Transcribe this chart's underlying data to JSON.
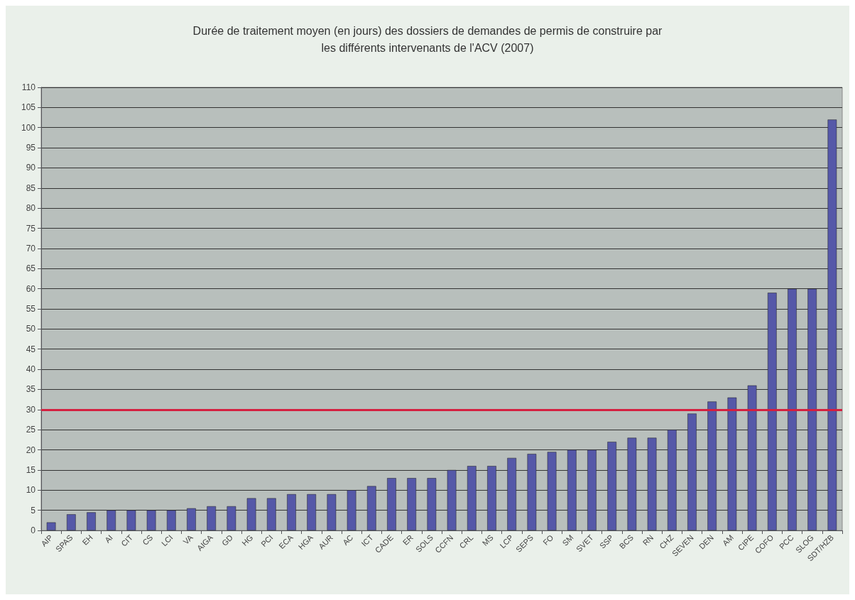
{
  "chart_data": {
    "type": "bar",
    "title": "Durée de traitement moyen (en jours) des dossiers de demandes de permis de construire par\nles différents intervenants de l'ACV (2007)",
    "categories": [
      "AIP",
      "SPAS",
      "EH",
      "AI",
      "CIT",
      "CS",
      "LCI",
      "VA",
      "AIGA",
      "GD",
      "HG",
      "PCI",
      "ECA",
      "HGA",
      "AUR",
      "AC",
      "ICT",
      "CADE",
      "ER",
      "SOLS",
      "CCFN",
      "CRL",
      "MS",
      "LCP",
      "SEPS",
      "FO",
      "SM",
      "SVET",
      "SSP",
      "BCS",
      "RN",
      "CHZ",
      "SEVEN",
      "DEN",
      "AM",
      "CIPE",
      "COFO",
      "PCC",
      "SLOG",
      "SDT/HZB"
    ],
    "values": [
      2,
      4,
      4.5,
      5,
      5,
      5,
      5,
      5.5,
      6,
      6,
      8,
      8,
      9,
      9,
      9,
      10,
      11,
      13,
      13,
      13,
      15,
      16,
      16,
      18,
      19,
      19.5,
      20,
      20,
      22,
      23,
      23,
      25,
      29,
      32,
      33,
      36,
      59,
      60,
      60,
      102
    ],
    "color": "#5558a8",
    "ylim": [
      0,
      110
    ],
    "yticks": [
      0,
      5,
      10,
      15,
      20,
      25,
      30,
      35,
      40,
      45,
      50,
      55,
      60,
      65,
      70,
      75,
      80,
      85,
      90,
      95,
      100,
      105,
      110
    ],
    "grid": "y",
    "ref_lines": [
      {
        "axis": "y",
        "value": 30,
        "color": "#d42040",
        "line_style": "solid"
      }
    ]
  }
}
